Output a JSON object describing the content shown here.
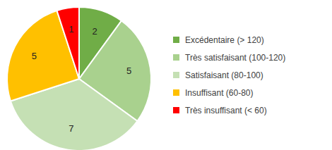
{
  "chart_data": {
    "type": "pie",
    "categories": [
      "Excédentaire (> 120)",
      "Très satisfaisant (100-120)",
      "Satisfaisant (80-100)",
      "Insuffisant (60-80)",
      "Très insuffisant (< 60)"
    ],
    "values": [
      2,
      5,
      7,
      5,
      1
    ],
    "colors": [
      "#70ad47",
      "#a9d18e",
      "#c5e0b4",
      "#ffc000",
      "#ff0000"
    ],
    "data_labels": true,
    "legend": "right"
  }
}
